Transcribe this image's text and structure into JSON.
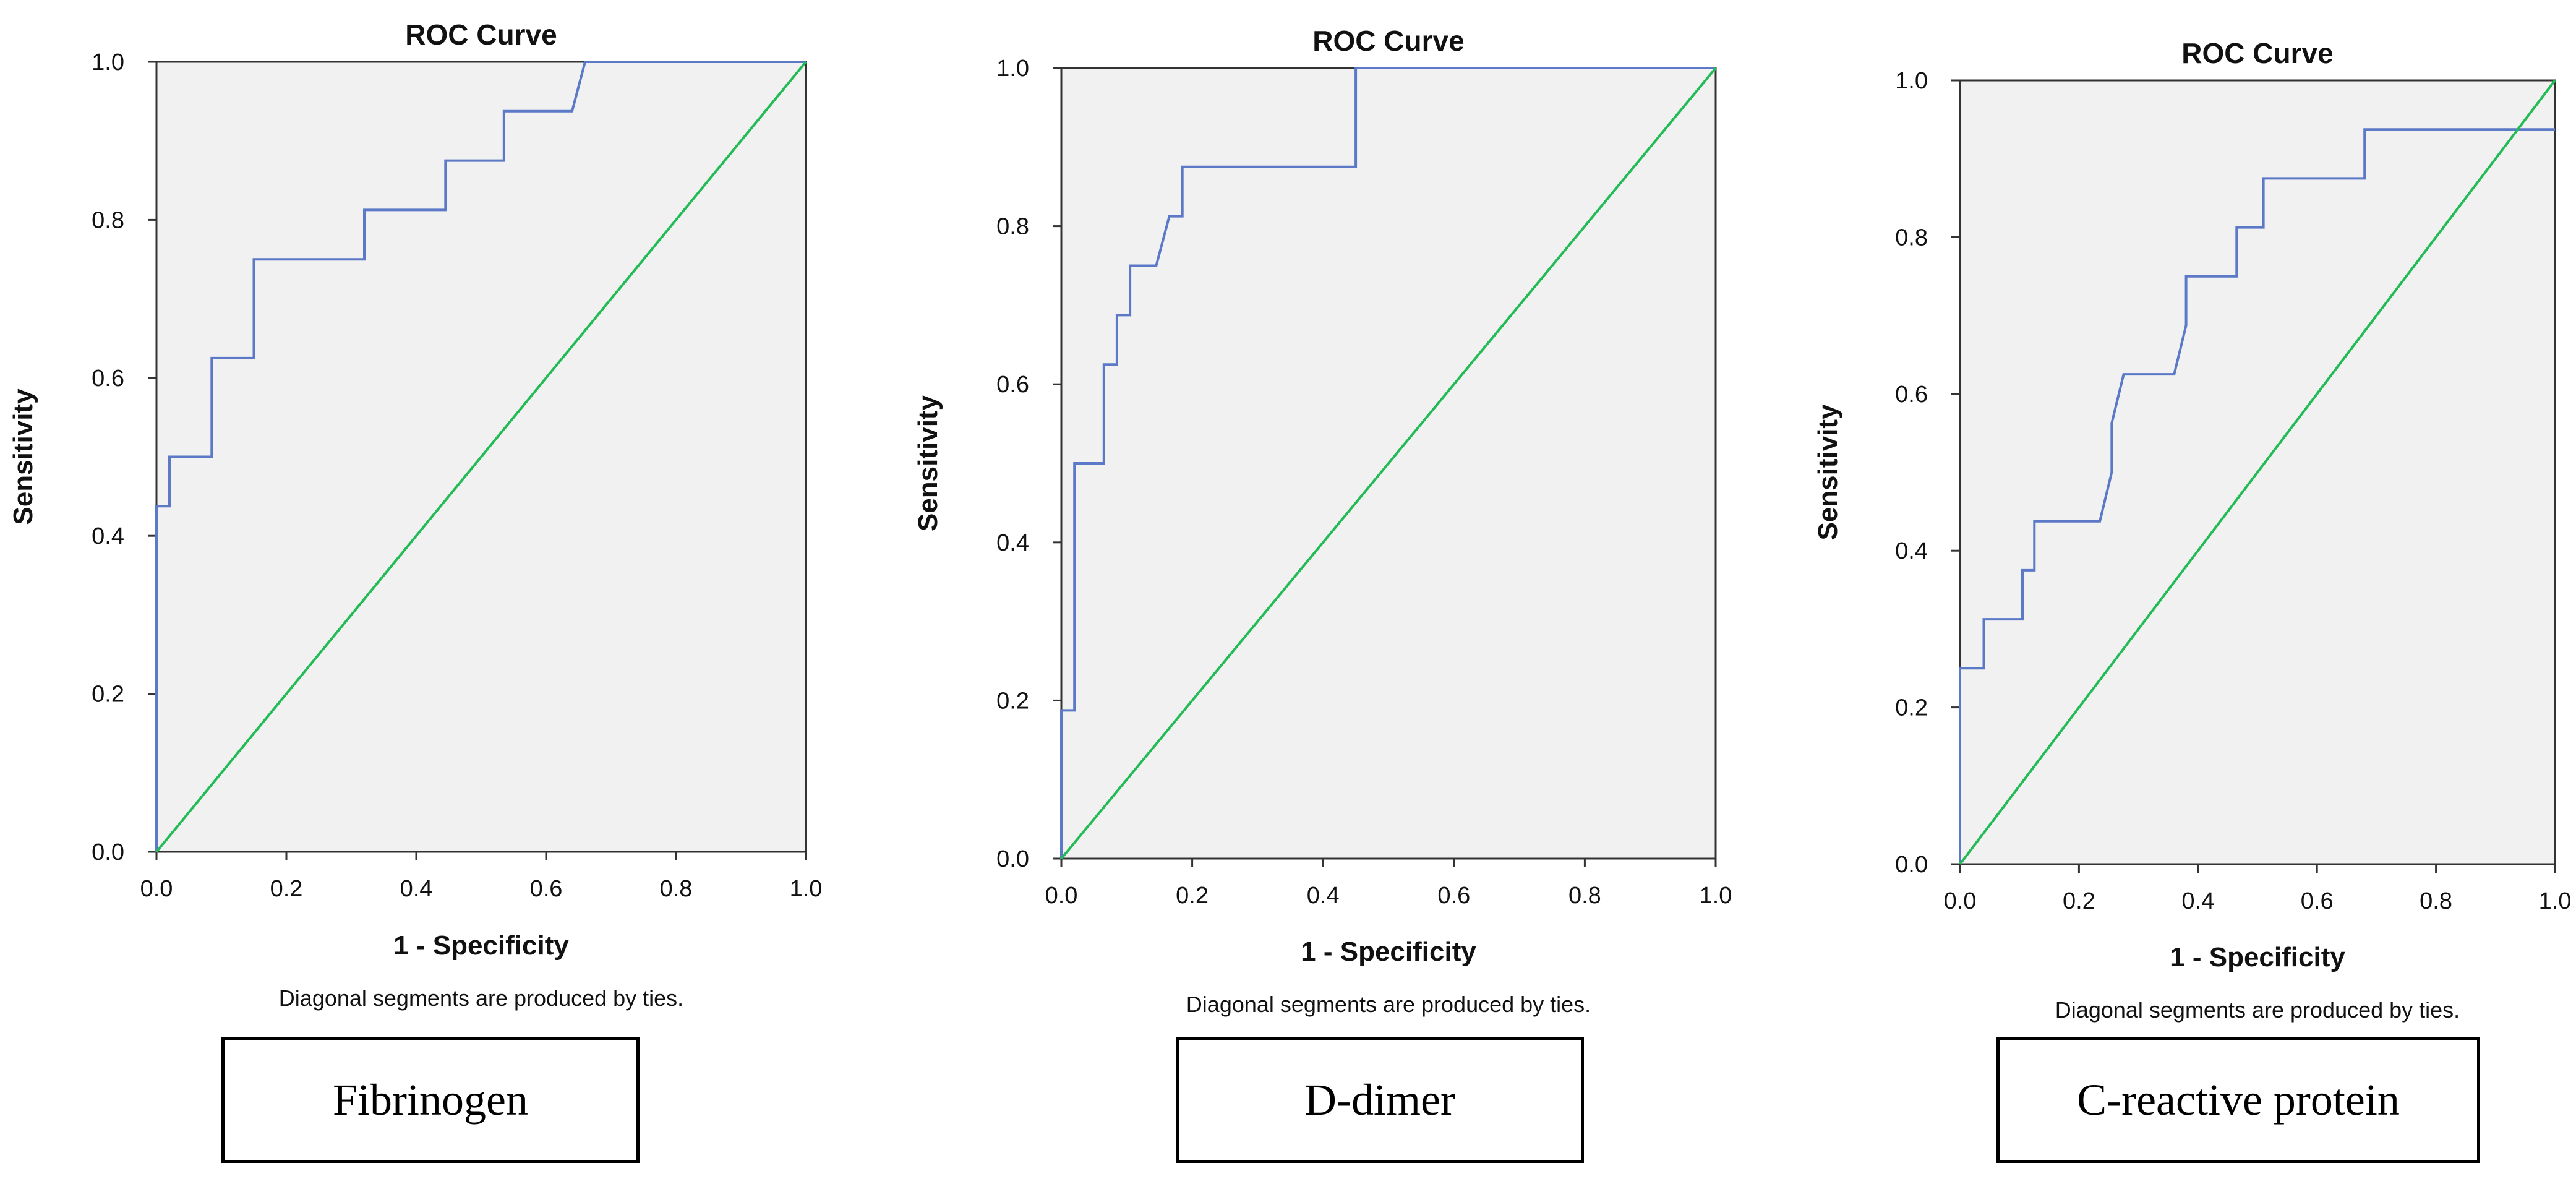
{
  "figure": {
    "panels": [
      {
        "id": "fibrinogen",
        "caption": "Fibrinogen"
      },
      {
        "id": "d-dimer",
        "caption": "D-dimer"
      },
      {
        "id": "c-reactive-protein",
        "caption": "C-reactive protein"
      }
    ]
  },
  "colors": {
    "plot_background": "#f1f1f1",
    "roc_curve": "#5b79c6",
    "reference_line": "#22bb55",
    "axis": "#333333",
    "text": "#111111"
  },
  "chart_data": [
    {
      "type": "line",
      "title": "ROC Curve",
      "xlabel": "1 - Specificity",
      "ylabel": "Sensitivity",
      "note": "Diagonal segments are produced by ties.",
      "xlim": [
        0,
        1
      ],
      "ylim": [
        0,
        1
      ],
      "xticks": [
        "0.0",
        "0.2",
        "0.4",
        "0.6",
        "0.8",
        "1.0"
      ],
      "yticks": [
        "0.0",
        "0.2",
        "0.4",
        "0.6",
        "0.8",
        "1.0"
      ],
      "series": [
        {
          "name": "Fibrinogen",
          "x": [
            0,
            0,
            0.02,
            0.02,
            0.085,
            0.085,
            0.15,
            0.15,
            0.32,
            0.32,
            0.445,
            0.445,
            0.535,
            0.535,
            0.64,
            0.66,
            1.0
          ],
          "y": [
            0,
            0.4375,
            0.4375,
            0.5,
            0.5,
            0.625,
            0.625,
            0.75,
            0.75,
            0.8125,
            0.8125,
            0.875,
            0.875,
            0.9375,
            0.9375,
            1.0,
            1.0
          ]
        },
        {
          "name": "Reference line",
          "x": [
            0,
            1
          ],
          "y": [
            0,
            1
          ]
        }
      ]
    },
    {
      "type": "line",
      "title": "ROC Curve",
      "xlabel": "1 - Specificity",
      "ylabel": "Sensitivity",
      "note": "Diagonal segments are produced by ties.",
      "xlim": [
        0,
        1
      ],
      "ylim": [
        0,
        1
      ],
      "xticks": [
        "0.0",
        "0.2",
        "0.4",
        "0.6",
        "0.8",
        "1.0"
      ],
      "yticks": [
        "0.0",
        "0.2",
        "0.4",
        "0.6",
        "0.8",
        "1.0"
      ],
      "series": [
        {
          "name": "D-dimer",
          "x": [
            0,
            0,
            0.02,
            0.02,
            0.065,
            0.065,
            0.085,
            0.085,
            0.105,
            0.105,
            0.145,
            0.165,
            0.185,
            0.185,
            0.45,
            0.45,
            1.0
          ],
          "y": [
            0,
            0.1875,
            0.1875,
            0.5,
            0.5,
            0.625,
            0.625,
            0.6875,
            0.6875,
            0.75,
            0.75,
            0.8125,
            0.8125,
            0.875,
            0.875,
            1.0,
            1.0
          ]
        },
        {
          "name": "Reference line",
          "x": [
            0,
            1
          ],
          "y": [
            0,
            1
          ]
        }
      ]
    },
    {
      "type": "line",
      "title": "ROC Curve",
      "xlabel": "1 - Specificity",
      "ylabel": "Sensitivity",
      "note": "Diagonal segments are produced by ties.",
      "xlim": [
        0,
        1
      ],
      "ylim": [
        0,
        1
      ],
      "xticks": [
        "0.0",
        "0.2",
        "0.4",
        "0.6",
        "0.8",
        "1.0"
      ],
      "yticks": [
        "0.0",
        "0.2",
        "0.4",
        "0.6",
        "0.8",
        "1.0"
      ],
      "series": [
        {
          "name": "C-reactive protein",
          "x": [
            0,
            0,
            0.04,
            0.04,
            0.105,
            0.105,
            0.125,
            0.125,
            0.235,
            0.255,
            0.255,
            0.275,
            0.36,
            0.38,
            0.38,
            0.465,
            0.465,
            0.51,
            0.51,
            0.68,
            0.68,
            1.0
          ],
          "y": [
            0,
            0.25,
            0.25,
            0.3125,
            0.3125,
            0.375,
            0.375,
            0.4375,
            0.4375,
            0.5,
            0.5625,
            0.625,
            0.625,
            0.6875,
            0.75,
            0.75,
            0.8125,
            0.8125,
            0.875,
            0.875,
            0.9375,
            0.9375
          ]
        },
        {
          "name": "Reference line",
          "x": [
            0,
            1
          ],
          "y": [
            0,
            1
          ]
        }
      ]
    }
  ]
}
